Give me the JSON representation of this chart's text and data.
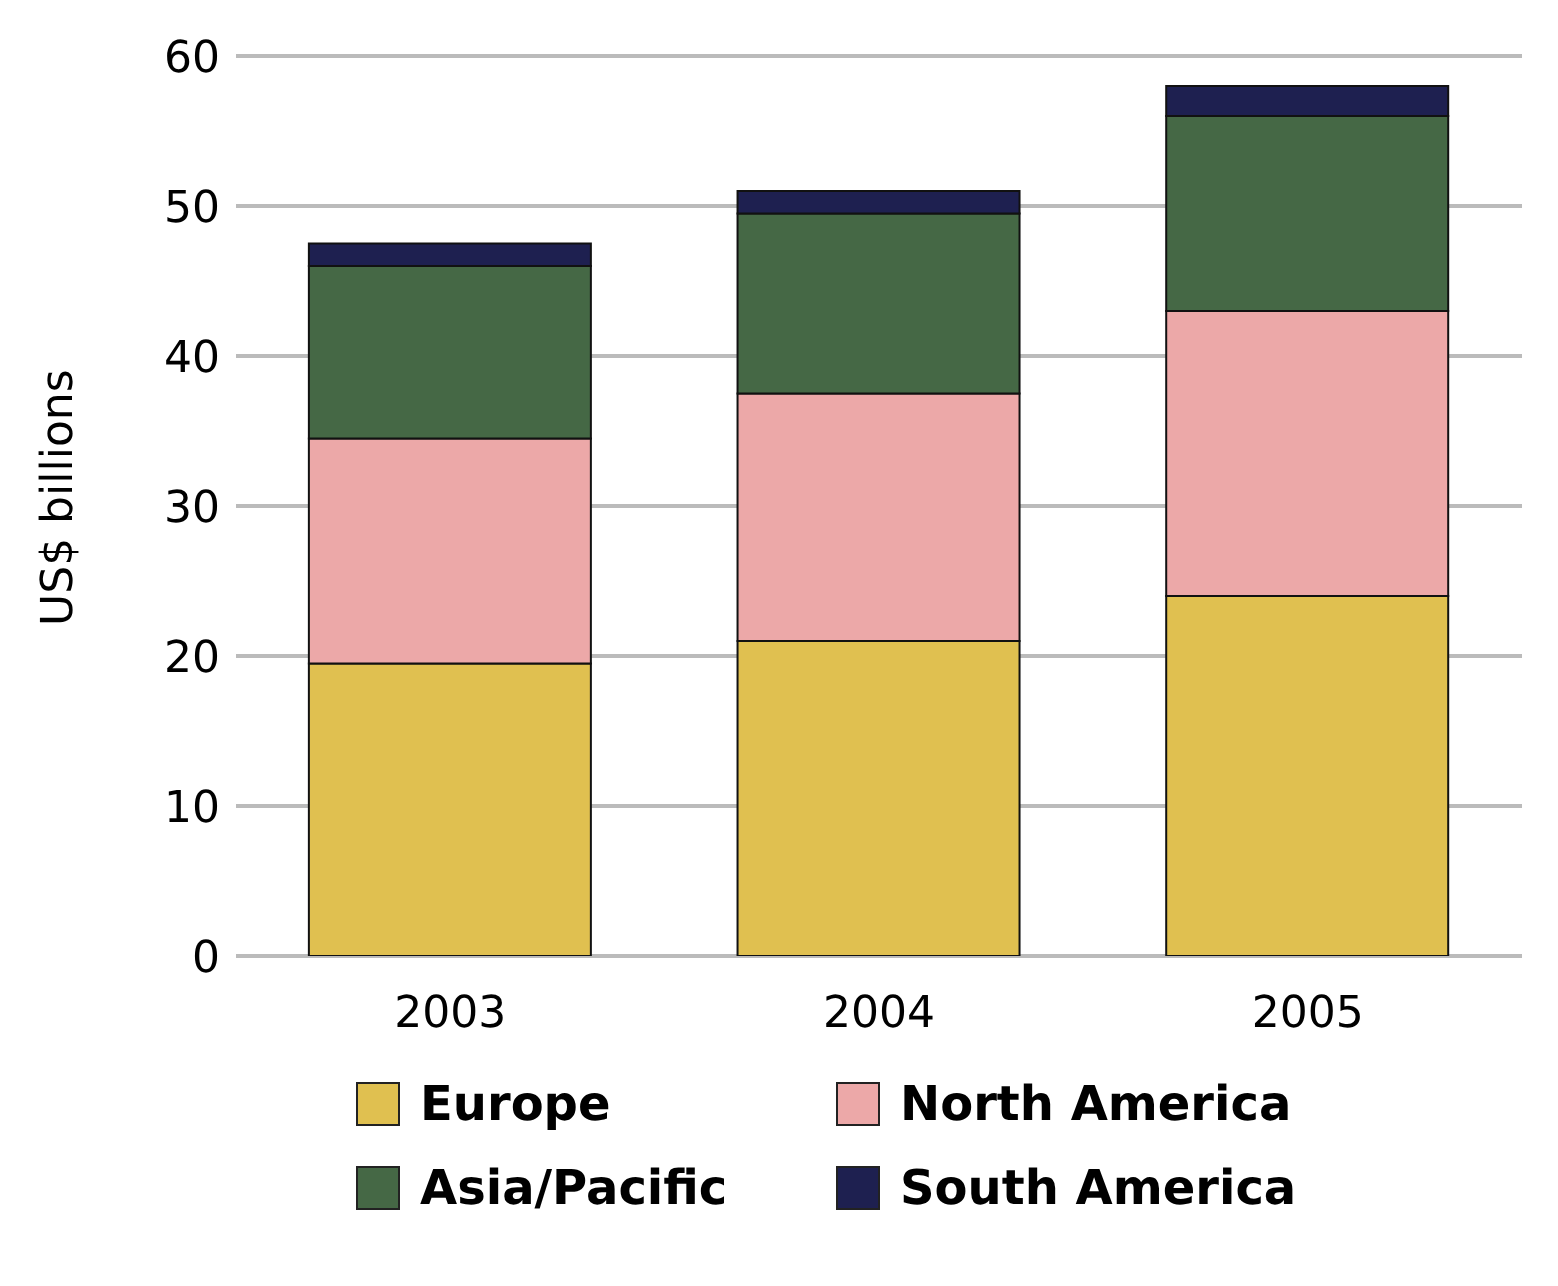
{
  "chart_data": {
    "type": "bar",
    "stacked": true,
    "ylabel": "US$ billions",
    "categories": [
      "2003",
      "2004",
      "2005"
    ],
    "series": [
      {
        "name": "Europe",
        "color": "#e0c050",
        "values": [
          19.5,
          21,
          24
        ]
      },
      {
        "name": "North America",
        "color": "#eca8a8",
        "values": [
          15,
          16.5,
          19
        ]
      },
      {
        "name": "Asia/Pacific",
        "color": "#456845",
        "values": [
          11.5,
          12,
          13
        ]
      },
      {
        "name": "South America",
        "color": "#1e2050",
        "values": [
          1.5,
          1.5,
          2
        ]
      }
    ],
    "ylim": [
      0,
      60
    ],
    "yticks": [
      0,
      10,
      20,
      30,
      40,
      50,
      60
    ],
    "grid": "y",
    "legend": "bottom"
  }
}
